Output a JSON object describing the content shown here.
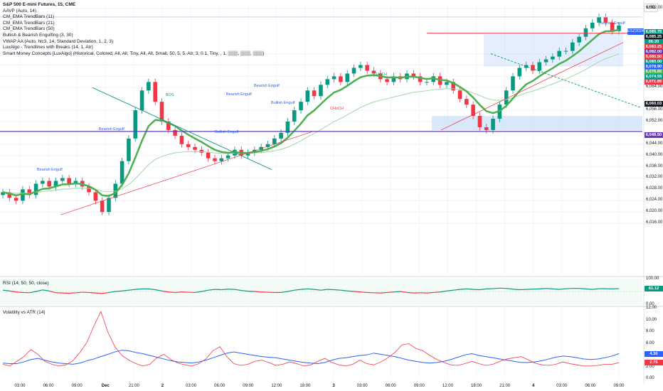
{
  "header": {
    "symbol_line": "S&P 500 E-mini Futures, 15, CME",
    "currency": "USD",
    "indicators": [
      "AAVP (Auto, 14)",
      "CM_EMA TrendBars (11)",
      "CM_EMA TrendBars (21)",
      "CM_EMA TrendBars (50)",
      "Bullish & Bearish Engulfing (3, 30)",
      "VWAP AA (Auto, hlc3, 14, Standard Deviation, 1, 2, 3)",
      "LuxAlgo - Trendlines with Breaks (14, 1, Atr)",
      "Smart Money Concepts [LuxAlgo] (Historical, Colored, All, All, Tiny, All, All, Small, 50, 5, 5, Atr, 3, 0.1, Tiny, , 1, ▒▒▒, ▒▒▒, ▒▒▒)"
    ]
  },
  "colors": {
    "bull": "#089981",
    "bear": "#f23645",
    "ema_bright": "#4caf50",
    "purple": "#673ab7",
    "blue": "#2962ff",
    "zone": "#bbd5f8"
  },
  "annotations": {
    "bearish_engulf": "Bearish Engulf",
    "bullish_engulf": "Bullish Engulf",
    "bos": "BOS",
    "choch": "CHoCH",
    "symbol_badge": "ESZ2024"
  },
  "chart_data": [
    {
      "type": "candlestick",
      "title": "S&P 500 E-mini Futures, 15, CME",
      "y_ticks": [
        6016.0,
        6020.0,
        6024.0,
        6028.0,
        6032.0,
        6036.0,
        6040.0,
        6044.0,
        6052.0,
        6056.0,
        6064.0,
        6068.0,
        6072.0,
        6076.0,
        6092.0
      ],
      "ylim": [
        6012.0,
        6093.0
      ],
      "price_tags": [
        {
          "value": "6,085.75",
          "color": "#089981"
        },
        {
          "value": "6,085.25",
          "color": "#131722"
        },
        {
          "value": "06:20",
          "color": "#089981"
        },
        {
          "value": "6,083.25",
          "color": "#f23645"
        },
        {
          "value": "6,082.00",
          "color": "#673ab7"
        },
        {
          "value": "6,080.50",
          "color": "#f23645"
        },
        {
          "value": "6,080.00",
          "color": "#089981"
        },
        {
          "value": "6,078.90",
          "color": "#2962ff"
        },
        {
          "value": "6,076.65",
          "color": "#4caf50"
        },
        {
          "value": "6,074.59",
          "color": "#089981"
        },
        {
          "value": "6,071.89",
          "color": "#f23645"
        },
        {
          "value": "6,060.03",
          "color": "#131722"
        },
        {
          "value": "6,048.50",
          "color": "#673ab7"
        }
      ],
      "close_approx": [
        6027,
        6025,
        6024,
        6028,
        6026,
        6030,
        6031,
        6029,
        6031,
        6032,
        6030,
        6031,
        6029,
        6027,
        6024,
        6020,
        6025,
        6030,
        6038,
        6046,
        6056,
        6063,
        6066,
        6059,
        6052,
        6049,
        6047,
        6044,
        6043,
        6042,
        6041,
        6039,
        6038,
        6039,
        6040,
        6042,
        6040,
        6041,
        6042,
        6043,
        6044,
        6046,
        6048,
        6052,
        6056,
        6059,
        6063,
        6061,
        6065,
        6067,
        6068,
        6066,
        6069,
        6071,
        6072,
        6070,
        6069,
        6067,
        6066,
        6068,
        6067,
        6069,
        6068,
        6066,
        6066,
        6068,
        6065,
        6066,
        6063,
        6060,
        6058,
        6054,
        6050,
        6049,
        6053,
        6058,
        6063,
        6068,
        6071,
        6072,
        6070,
        6073,
        6074,
        6075,
        6077,
        6077,
        6080,
        6082,
        6085,
        6087,
        6089,
        6087,
        6084,
        6086
      ]
    },
    {
      "type": "line",
      "title": "RSI (14, 50, 50, close)",
      "ylim": [
        0,
        100
      ],
      "y_ticks": [
        0.0,
        100.0
      ],
      "last_value": "61.12",
      "series": [
        {
          "values": [
            55,
            52,
            48,
            46,
            45,
            50,
            56,
            52,
            45,
            44,
            43,
            45,
            47,
            46,
            44,
            42,
            46,
            50,
            52,
            55,
            58,
            60,
            60,
            57,
            52,
            48,
            46,
            48,
            47,
            46,
            50,
            55,
            58,
            57,
            59,
            58,
            54,
            51,
            50,
            48,
            47,
            46,
            46,
            50,
            55,
            58,
            60,
            58,
            55,
            58,
            57,
            55,
            52,
            50,
            48,
            46,
            45,
            44,
            46,
            48,
            50,
            46,
            44,
            45,
            44,
            46,
            48,
            52,
            55,
            58,
            60,
            58,
            57,
            60,
            61,
            63,
            62,
            59,
            57,
            58,
            59,
            60,
            62,
            60,
            58,
            61,
            62,
            62,
            60,
            58,
            61,
            61,
            60,
            61
          ]
        }
      ]
    },
    {
      "type": "line",
      "title": "Volatility vs ATR (14)",
      "y_ticks": [
        0.0,
        2.0,
        4.0,
        6.0,
        8.0,
        10.0,
        12.0
      ],
      "ylim": [
        0,
        12
      ],
      "series": [
        {
          "last_value": "4.30",
          "color": "#2962ff",
          "values": [
            2.7,
            2.6,
            2.6,
            2.9,
            3.3,
            3.5,
            3.2,
            2.9,
            2.7,
            2.6,
            2.5,
            2.7,
            3.1,
            3.4,
            3.8,
            4.2,
            4.6,
            4.9,
            4.8,
            4.5,
            4.3,
            4.0,
            3.7,
            3.4,
            3.1,
            2.9,
            2.8,
            2.7,
            2.9,
            3.2,
            3.6,
            4.0,
            4.4,
            4.6,
            4.4,
            4.2,
            4.0,
            3.8,
            3.7,
            3.6,
            3.4,
            3.2,
            3.0,
            2.8,
            2.7,
            2.6,
            2.8,
            3.2,
            3.5,
            3.6,
            3.8,
            4.0,
            4.1,
            4.4,
            4.2,
            4.0,
            3.8,
            3.5,
            3.2,
            3.0,
            2.8,
            2.7,
            2.8,
            3.0,
            3.3,
            3.7,
            4.1,
            4.3,
            4.0,
            3.8,
            3.6,
            3.4,
            3.2,
            3.0,
            2.8,
            2.8,
            2.9,
            3.1,
            3.4,
            3.7,
            3.9,
            3.8,
            3.6,
            3.4,
            3.3,
            3.4,
            3.6,
            3.9,
            4.3
          ]
        },
        {
          "last_value": "2.75",
          "color": "#f23645",
          "values": [
            2.5,
            2.2,
            3.0,
            3.8,
            5.0,
            4.2,
            3.0,
            2.5,
            2.2,
            2.4,
            3.1,
            4.5,
            6.2,
            9.0,
            11.5,
            8.0,
            5.5,
            4.0,
            3.2,
            2.6,
            2.2,
            2.5,
            3.6,
            4.2,
            3.3,
            2.7,
            2.4,
            2.2,
            2.6,
            3.4,
            4.8,
            5.5,
            3.8,
            2.6,
            2.3,
            2.5,
            3.0,
            3.2,
            2.8,
            2.3,
            2.5,
            2.9,
            2.6,
            2.2,
            2.4,
            3.0,
            3.5,
            2.8,
            2.4,
            2.2,
            2.5,
            3.2,
            2.6,
            2.4,
            2.9,
            3.6,
            4.5,
            5.8,
            6.0,
            5.2,
            4.8,
            4.0,
            3.3,
            2.8,
            2.4,
            2.3,
            2.6,
            3.0,
            2.6,
            2.3,
            2.5,
            3.0,
            3.4,
            3.6,
            3.8,
            3.3,
            2.7,
            2.4,
            2.3,
            2.5,
            2.9,
            2.6,
            2.4,
            2.2,
            2.2,
            2.3,
            2.5,
            2.5,
            2.75
          ]
        }
      ]
    }
  ],
  "time_axis": [
    "03:00",
    "06:00",
    "09:00",
    "Dec",
    "21:00",
    "2",
    "03:00",
    "06:00",
    "09:00",
    "12:00",
    "18:00",
    "3",
    "03:00",
    "06:00",
    "09:00",
    "12:00",
    "18:00",
    "21:00",
    "4",
    "03:00",
    "06:00",
    "09:00"
  ]
}
